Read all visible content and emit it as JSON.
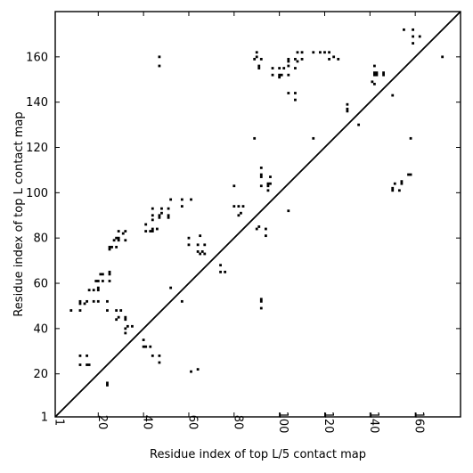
{
  "chart_data": {
    "type": "scatter",
    "xlabel": "Residue index of top L/5 contact map",
    "ylabel": "Residue index of top L contact map",
    "xlim": [
      1,
      180
    ],
    "ylim": [
      1,
      180
    ],
    "xticks": [
      1,
      20,
      40,
      60,
      80,
      100,
      120,
      140,
      160
    ],
    "yticks": [
      1,
      20,
      40,
      60,
      80,
      100,
      120,
      140,
      160
    ],
    "diagonal": true,
    "grid": false,
    "marker_color": "#000000",
    "series": [
      {
        "points": [
          [
            8,
            48
          ],
          [
            12,
            48
          ],
          [
            12,
            51
          ],
          [
            12,
            52
          ],
          [
            14,
            51
          ],
          [
            15,
            52
          ],
          [
            16,
            57
          ],
          [
            12,
            28
          ],
          [
            12,
            24
          ],
          [
            15,
            28
          ],
          [
            15,
            24
          ],
          [
            16,
            24
          ],
          [
            18,
            52
          ],
          [
            18,
            57
          ],
          [
            19,
            61
          ],
          [
            20,
            57
          ],
          [
            20,
            58
          ],
          [
            20,
            61
          ],
          [
            21,
            64
          ],
          [
            22,
            61
          ],
          [
            22,
            64
          ],
          [
            20,
            52
          ],
          [
            24,
            52
          ],
          [
            24,
            48
          ],
          [
            24,
            15
          ],
          [
            24,
            16
          ],
          [
            25,
            61
          ],
          [
            25,
            64
          ],
          [
            25,
            65
          ],
          [
            25,
            75
          ],
          [
            25,
            76
          ],
          [
            26,
            76
          ],
          [
            27,
            79
          ],
          [
            28,
            76
          ],
          [
            28,
            80
          ],
          [
            29,
            79
          ],
          [
            29,
            80
          ],
          [
            28,
            44
          ],
          [
            29,
            45
          ],
          [
            30,
            48
          ],
          [
            28,
            48
          ],
          [
            29,
            83
          ],
          [
            31,
            82
          ],
          [
            32,
            83
          ],
          [
            32,
            79
          ],
          [
            32,
            44
          ],
          [
            32,
            45
          ],
          [
            32,
            40
          ],
          [
            33,
            41
          ],
          [
            32,
            38
          ],
          [
            35,
            41
          ],
          [
            40,
            32
          ],
          [
            41,
            32
          ],
          [
            40,
            35
          ],
          [
            43,
            32
          ],
          [
            44,
            28
          ],
          [
            47,
            28
          ],
          [
            47,
            25
          ],
          [
            41,
            83
          ],
          [
            41,
            86
          ],
          [
            43,
            83
          ],
          [
            44,
            83
          ],
          [
            44,
            84
          ],
          [
            44,
            88
          ],
          [
            44,
            90
          ],
          [
            44,
            93
          ],
          [
            46,
            84
          ],
          [
            47,
            89
          ],
          [
            47,
            90
          ],
          [
            48,
            91
          ],
          [
            48,
            93
          ],
          [
            47,
            156
          ],
          [
            47,
            160
          ],
          [
            51,
            89
          ],
          [
            51,
            90
          ],
          [
            51,
            93
          ],
          [
            52,
            97
          ],
          [
            52,
            58
          ],
          [
            57,
            94
          ],
          [
            57,
            97
          ],
          [
            61,
            97
          ],
          [
            57,
            52
          ],
          [
            60,
            80
          ],
          [
            60,
            77
          ],
          [
            61,
            21
          ],
          [
            64,
            22
          ],
          [
            64,
            77
          ],
          [
            64,
            74
          ],
          [
            65,
            73
          ],
          [
            65,
            81
          ],
          [
            66,
            74
          ],
          [
            67,
            73
          ],
          [
            67,
            77
          ],
          [
            74,
            65
          ],
          [
            74,
            68
          ],
          [
            76,
            65
          ],
          [
            80,
            103
          ],
          [
            80,
            94
          ],
          [
            82,
            90
          ],
          [
            82,
            94
          ],
          [
            83,
            91
          ],
          [
            84,
            94
          ],
          [
            89,
            124
          ],
          [
            90,
            84
          ],
          [
            91,
            85
          ],
          [
            89,
            159
          ],
          [
            90,
            160
          ],
          [
            90,
            162
          ],
          [
            91,
            155
          ],
          [
            91,
            156
          ],
          [
            92,
            159
          ],
          [
            92,
            107
          ],
          [
            92,
            108
          ],
          [
            92,
            111
          ],
          [
            92,
            103
          ],
          [
            92,
            49
          ],
          [
            92,
            52
          ],
          [
            92,
            53
          ],
          [
            94,
            84
          ],
          [
            94,
            81
          ],
          [
            95,
            101
          ],
          [
            95,
            103
          ],
          [
            95,
            104
          ],
          [
            96,
            104
          ],
          [
            96,
            107
          ],
          [
            97,
            152
          ],
          [
            97,
            155
          ],
          [
            100,
            151
          ],
          [
            100,
            152
          ],
          [
            100,
            155
          ],
          [
            101,
            152
          ],
          [
            102,
            155
          ],
          [
            104,
            152
          ],
          [
            104,
            156
          ],
          [
            104,
            158
          ],
          [
            104,
            159
          ],
          [
            104,
            92
          ],
          [
            104,
            144
          ],
          [
            107,
            144
          ],
          [
            107,
            141
          ],
          [
            107,
            155
          ],
          [
            107,
            159
          ],
          [
            108,
            162
          ],
          [
            108,
            158
          ],
          [
            110,
            159
          ],
          [
            110,
            162
          ],
          [
            115,
            124
          ],
          [
            115,
            162
          ],
          [
            118,
            162
          ],
          [
            120,
            162
          ],
          [
            122,
            159
          ],
          [
            122,
            162
          ],
          [
            124,
            160
          ],
          [
            126,
            159
          ],
          [
            130,
            136
          ],
          [
            130,
            137
          ],
          [
            130,
            139
          ],
          [
            135,
            130
          ],
          [
            141,
            149
          ],
          [
            142,
            148
          ],
          [
            142,
            152
          ],
          [
            142,
            153
          ],
          [
            142,
            156
          ],
          [
            143,
            152
          ],
          [
            143,
            153
          ],
          [
            146,
            152
          ],
          [
            146,
            153
          ],
          [
            150,
            143
          ],
          [
            150,
            102
          ],
          [
            150,
            101
          ],
          [
            151,
            104
          ],
          [
            153,
            101
          ],
          [
            154,
            104
          ],
          [
            154,
            105
          ],
          [
            155,
            172
          ],
          [
            157,
            108
          ],
          [
            158,
            108
          ],
          [
            158,
            124
          ],
          [
            159,
            166
          ],
          [
            159,
            169
          ],
          [
            159,
            172
          ],
          [
            162,
            169
          ],
          [
            172,
            160
          ]
        ]
      }
    ]
  }
}
